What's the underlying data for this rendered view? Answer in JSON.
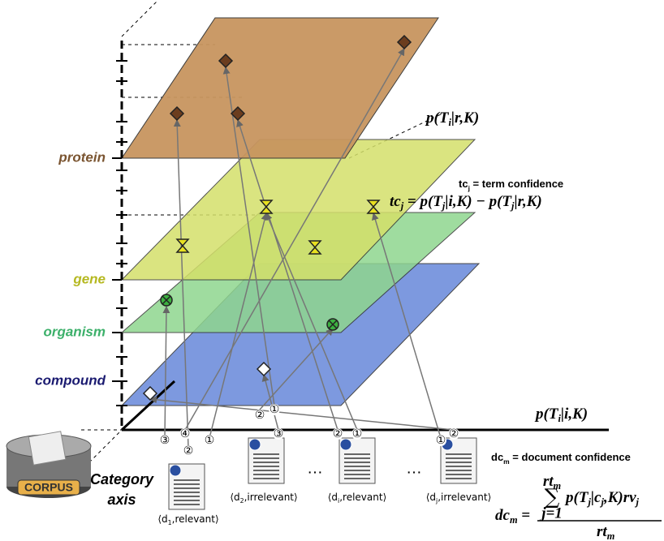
{
  "category_axis": {
    "labels": [
      "protein",
      "gene",
      "organism",
      "compound"
    ],
    "title": [
      "Category",
      "axis"
    ],
    "corpus": "CORPUS"
  },
  "formulas": {
    "p_irrelevant": [
      "p(T",
      "i",
      "|r,K)"
    ],
    "p_relevant": [
      "p(T",
      "i",
      "|i,K)"
    ],
    "tc_definition": [
      "tc",
      "j",
      " = term confidence"
    ],
    "tc_formula": [
      "tc",
      "j",
      " = p(T",
      "j",
      "|i,K) − p(T",
      "j",
      "|r,K)"
    ],
    "dc_definition": [
      "dc",
      "m",
      " = document confidence"
    ],
    "dc_formula": {
      "lhs": [
        "dc",
        "m",
        " ="
      ],
      "sum": "∑",
      "sum_top": [
        "rt",
        "m"
      ],
      "sum_bottom": "j=1",
      "numerator": [
        "p(T",
        "j",
        "|c",
        "j",
        ",K)rv",
        "j"
      ],
      "denominator": [
        "rt",
        "m"
      ]
    }
  },
  "documents": [
    {
      "label": [
        "⟨d",
        "1",
        ",relevant⟩"
      ],
      "links": [
        "③",
        "④",
        "②",
        "①"
      ]
    },
    {
      "label": [
        "⟨d",
        "2",
        ",irrelevant⟩"
      ],
      "links": [
        "②",
        "①",
        "③"
      ]
    },
    {
      "label": [
        "⟨d",
        "i",
        ",relevant⟩"
      ],
      "links": [
        "②",
        "①"
      ]
    },
    {
      "label": [
        "⟨d",
        "j",
        ",irrelevant⟩"
      ],
      "links": [
        "①",
        "②"
      ]
    }
  ],
  "ellipsis": [
    "…",
    "…"
  ]
}
